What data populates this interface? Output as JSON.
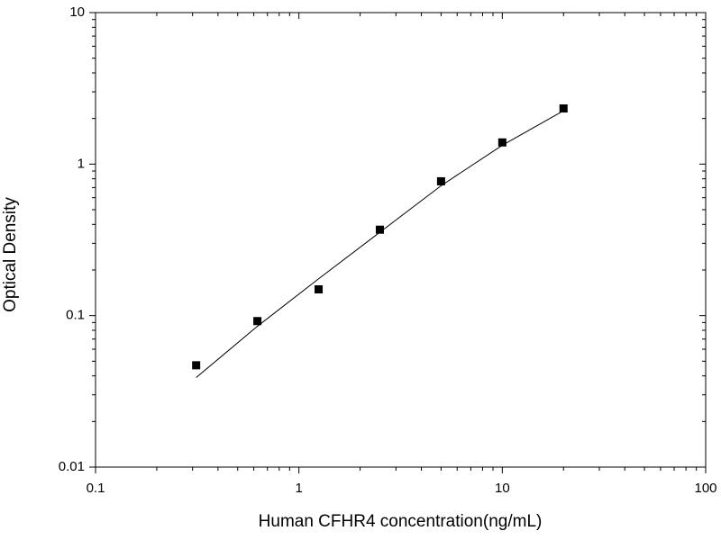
{
  "chart_data": {
    "type": "scatter",
    "x_label": "Human CFHR4 concentration(ng/mL)",
    "y_label": "Optical Density",
    "x": [
      0.3125,
      0.625,
      1.25,
      2.5,
      5,
      10,
      20
    ],
    "values": [
      0.047,
      0.092,
      0.149,
      0.369,
      0.77,
      1.39,
      2.33
    ],
    "color": "#000000",
    "fit_curve": {
      "x": [
        0.3125,
        0.625,
        1.25,
        2.5,
        5,
        10,
        20
      ],
      "y": [
        0.039,
        0.085,
        0.175,
        0.355,
        0.72,
        1.33,
        2.25
      ],
      "color": "#000000"
    },
    "log_x": true,
    "log_y": true,
    "xlim": [
      0.1,
      100
    ],
    "ylim": [
      0.01,
      10
    ],
    "xticks": [
      0.1,
      1,
      10,
      100
    ],
    "yticks": [
      0.01,
      0.1,
      1,
      10
    ],
    "xminorticks": [
      0.2,
      0.3,
      0.4,
      0.5,
      0.6,
      0.7,
      0.8,
      0.9,
      2,
      3,
      4,
      5,
      6,
      7,
      8,
      9,
      20,
      30,
      40,
      50,
      60,
      70,
      80,
      90
    ],
    "yminorticks": [
      0.02,
      0.03,
      0.04,
      0.05,
      0.06,
      0.07,
      0.08,
      0.09,
      0.2,
      0.3,
      0.4,
      0.5,
      0.6,
      0.7,
      0.8,
      0.9,
      2,
      3,
      4,
      5,
      6,
      7,
      8,
      9
    ]
  }
}
